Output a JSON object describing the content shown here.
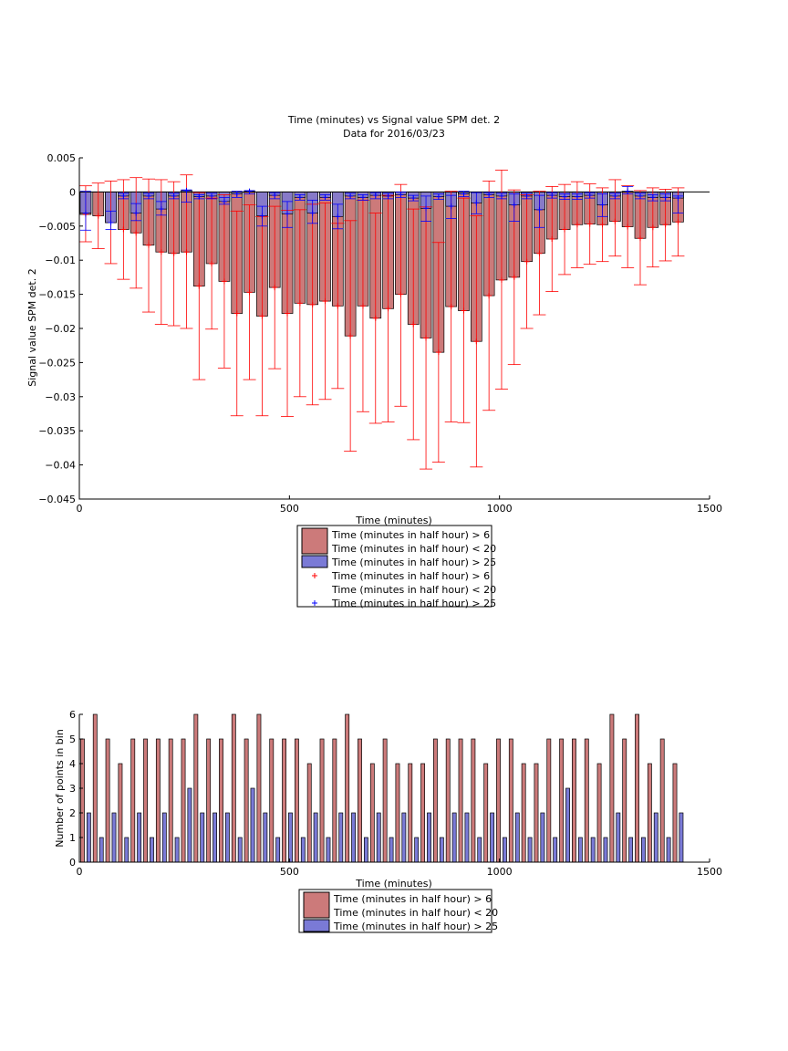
{
  "chart_data": [
    {
      "type": "bar",
      "title": "Time (minutes) vs Signal value SPM det. 2",
      "subtitle": "Data for 2016/03/23",
      "xlabel": "Time (minutes)",
      "ylabel": "Signal value SPM det. 2",
      "xlim": [
        0,
        1500
      ],
      "ylim": [
        -0.045,
        0.005
      ],
      "xticks": [
        "0",
        "500",
        "1000",
        "1500"
      ],
      "yticks": [
        "0.005",
        "0",
        "-0.005",
        "-0.01",
        "-0.015",
        "-0.02",
        "-0.025",
        "-0.03",
        "-0.035",
        "-0.04",
        "-0.045"
      ],
      "yticks_display": [
        "0.005",
        "0",
        "−0.005",
        "−0.01",
        "−0.015",
        "−0.02",
        "−0.025",
        "−0.03",
        "−0.035",
        "−0.04",
        "−0.045"
      ],
      "grid": false,
      "legend_position": "below",
      "x": [
        15,
        45,
        75,
        105,
        135,
        165,
        195,
        225,
        255,
        285,
        315,
        345,
        375,
        405,
        435,
        465,
        495,
        525,
        555,
        585,
        615,
        645,
        675,
        705,
        735,
        765,
        795,
        825,
        855,
        885,
        915,
        945,
        975,
        1005,
        1035,
        1065,
        1095,
        1125,
        1155,
        1185,
        1215,
        1245,
        1275,
        1305,
        1335,
        1365,
        1395,
        1425
      ],
      "series": [
        {
          "name": "Time (minutes in half hour) > 6",
          "name_line2": "Time (minutes in half hour) < 20",
          "color": "#cc7a7a",
          "values": [
            -0.0033,
            -0.0035,
            -0.0045,
            -0.0055,
            -0.006,
            -0.0078,
            -0.0088,
            -0.009,
            -0.0088,
            -0.0138,
            -0.0105,
            -0.0131,
            -0.0178,
            -0.0147,
            -0.0182,
            -0.014,
            -0.0178,
            -0.0163,
            -0.0165,
            -0.016,
            -0.0167,
            -0.0211,
            -0.0167,
            -0.0185,
            -0.0171,
            -0.015,
            -0.0194,
            -0.0214,
            -0.0235,
            -0.0168,
            -0.0174,
            -0.0219,
            -0.0152,
            -0.0129,
            -0.0125,
            -0.0102,
            -0.009,
            -0.0069,
            -0.0055,
            -0.0048,
            -0.0047,
            -0.0048,
            -0.0043,
            -0.0051,
            -0.0068,
            -0.0052,
            -0.0048,
            -0.0044
          ],
          "err_low": [
            -0.0073,
            -0.0083,
            -0.0105,
            -0.0128,
            -0.0141,
            -0.0176,
            -0.0194,
            -0.0196,
            -0.02,
            -0.0275,
            -0.0201,
            -0.0258,
            -0.0328,
            -0.0275,
            -0.0328,
            -0.0259,
            -0.0329,
            -0.03,
            -0.0312,
            -0.0304,
            -0.0288,
            -0.038,
            -0.0322,
            -0.0339,
            -0.0337,
            -0.0314,
            -0.0363,
            -0.0406,
            -0.0396,
            -0.0337,
            -0.0338,
            -0.0403,
            -0.032,
            -0.0289,
            -0.0253,
            -0.02,
            -0.018,
            -0.0146,
            -0.0121,
            -0.0111,
            -0.0106,
            -0.0102,
            -0.0094,
            -0.0111,
            -0.0136,
            -0.011,
            -0.0101,
            -0.0094
          ],
          "err_high": [
            0.0009,
            0.0013,
            0.0016,
            0.0018,
            0.0021,
            0.0019,
            0.0018,
            0.0015,
            0.0025,
            -0.0001,
            -0.0009,
            -0.0004,
            -0.0028,
            -0.0019,
            -0.0036,
            -0.0021,
            -0.0027,
            -0.0026,
            -0.0018,
            -0.0016,
            -0.0046,
            -0.0042,
            -0.0012,
            -0.0031,
            -0.0005,
            0.0011,
            -0.0025,
            -0.0022,
            -0.0074,
            0.0001,
            -0.0009,
            -0.0035,
            0.0016,
            0.0032,
            0.0003,
            -0.0004,
            0.0001,
            0.0008,
            0.0011,
            0.0015,
            0.0012,
            0.0006,
            0.0018,
            0.0009,
            0.0002,
            0.0006,
            0.0004,
            0.0006
          ]
        },
        {
          "name": "Time (minutes in half hour) > 25",
          "color": "#7a7ad6",
          "values": [
            -0.0031,
            null,
            -0.0045,
            -0.0006,
            -0.0031,
            -0.0006,
            -0.0025,
            -0.0006,
            0.0002,
            -0.0007,
            -0.0006,
            -0.0014,
            -0.0003,
            0.0001,
            -0.0035,
            -0.0005,
            -0.0032,
            -0.0008,
            -0.0031,
            -0.0008,
            -0.0036,
            -0.0006,
            -0.0008,
            -0.0005,
            -0.0006,
            -0.0004,
            -0.0009,
            -0.0024,
            -0.0007,
            -0.0021,
            -0.0003,
            -0.0016,
            -0.0004,
            -0.0006,
            -0.0019,
            -0.0006,
            -0.0026,
            -0.0005,
            -0.0007,
            -0.0007,
            -0.0005,
            -0.0019,
            -0.0006,
            0.0001,
            -0.0006,
            -0.0008,
            -0.0008,
            -0.0009
          ],
          "err_low": [
            -0.0056,
            null,
            -0.0055,
            -0.001,
            -0.0042,
            -0.001,
            -0.0034,
            -0.001,
            -0.0015,
            -0.001,
            -0.001,
            -0.0018,
            -0.0008,
            -0.0003,
            -0.005,
            -0.001,
            -0.0052,
            -0.0012,
            -0.0046,
            -0.0012,
            -0.0054,
            -0.001,
            -0.0012,
            -0.001,
            -0.001,
            -0.0008,
            -0.0013,
            -0.0043,
            -0.0011,
            -0.0039,
            -0.0007,
            -0.0032,
            -0.0008,
            -0.001,
            -0.0043,
            -0.001,
            -0.0052,
            -0.0009,
            -0.0011,
            -0.0011,
            -0.0009,
            -0.0036,
            -0.001,
            -0.0003,
            -0.001,
            -0.0013,
            -0.0013,
            -0.0031
          ],
          "err_high": [
            0.0001,
            null,
            -0.0028,
            -0.0002,
            -0.0017,
            -0.0002,
            -0.0014,
            -0.0002,
            0.0003,
            -0.0004,
            -0.0002,
            -0.0008,
            0.0001,
            0.0002,
            -0.0021,
            -0.0001,
            -0.0014,
            -0.0004,
            -0.0012,
            -0.0004,
            -0.0018,
            -0.0002,
            -0.0004,
            -0.0001,
            -0.0002,
            0.0,
            -0.0005,
            -0.0006,
            -0.0003,
            -0.0005,
            0.0001,
            -0.0001,
            -0.0001,
            -0.0002,
            -0.0003,
            -0.0002,
            -0.0005,
            -0.0001,
            -0.0003,
            -0.0003,
            -0.0001,
            -0.0003,
            -0.0002,
            0.0008,
            -0.0002,
            -0.0004,
            -0.0003,
            -0.0006
          ]
        }
      ],
      "legend": [
        {
          "lines": [
            "Time (minutes in half hour) > 6",
            "Time (minutes in half hour) < 20"
          ],
          "marker": "bar",
          "color": "#cc7a7a"
        },
        {
          "lines": [
            "Time (minutes in half hour) > 25"
          ],
          "marker": "bar",
          "color": "#7a7ad6"
        },
        {
          "lines": [
            "Time (minutes in half hour) > 6",
            "Time (minutes in half hour) < 20"
          ],
          "marker": "+",
          "color": "#ff0000"
        },
        {
          "lines": [
            "Time (minutes in half hour) > 25"
          ],
          "marker": "+",
          "color": "#0000ff"
        }
      ]
    },
    {
      "type": "bar",
      "xlabel": "Time (minutes)",
      "ylabel": "Number of points in bin",
      "xlim": [
        0,
        1500
      ],
      "ylim": [
        0,
        6
      ],
      "xticks": [
        "0",
        "500",
        "1000",
        "1500"
      ],
      "yticks": [
        "0",
        "1",
        "2",
        "3",
        "4",
        "5",
        "6"
      ],
      "grid": false,
      "legend_position": "below",
      "x": [
        15,
        45,
        75,
        105,
        135,
        165,
        195,
        225,
        255,
        285,
        315,
        345,
        375,
        405,
        435,
        465,
        495,
        525,
        555,
        585,
        615,
        645,
        675,
        705,
        735,
        765,
        795,
        825,
        855,
        885,
        915,
        945,
        975,
        1005,
        1035,
        1065,
        1095,
        1125,
        1155,
        1185,
        1215,
        1245,
        1275,
        1305,
        1335,
        1365,
        1395,
        1425
      ],
      "series": [
        {
          "name": "Time (minutes in half hour) > 6",
          "name_line2": "Time (minutes in half hour) < 20",
          "color": "#cc7a7a",
          "values": [
            5,
            6,
            5,
            4,
            5,
            5,
            5,
            5,
            5,
            6,
            5,
            5,
            6,
            5,
            6,
            5,
            5,
            5,
            4,
            5,
            5,
            6,
            5,
            4,
            5,
            4,
            4,
            4,
            5,
            5,
            5,
            5,
            4,
            5,
            5,
            4,
            4,
            5,
            5,
            5,
            5,
            4,
            6,
            5,
            6,
            4,
            5,
            4
          ]
        },
        {
          "name": "Time (minutes in half hour) > 25",
          "color": "#7a7ad6",
          "values": [
            2,
            1,
            2,
            1,
            2,
            1,
            2,
            1,
            3,
            2,
            2,
            2,
            1,
            3,
            2,
            1,
            2,
            1,
            2,
            1,
            2,
            2,
            1,
            2,
            1,
            2,
            1,
            2,
            1,
            2,
            2,
            1,
            2,
            1,
            2,
            1,
            2,
            1,
            3,
            1,
            1,
            1,
            2,
            1,
            1,
            2,
            1,
            2
          ]
        }
      ],
      "legend": [
        {
          "lines": [
            "Time (minutes in half hour) > 6",
            "Time (minutes in half hour) < 20"
          ],
          "marker": "bar",
          "color": "#cc7a7a"
        },
        {
          "lines": [
            "Time (minutes in half hour) > 25"
          ],
          "marker": "bar",
          "color": "#7a7ad6"
        }
      ]
    }
  ]
}
